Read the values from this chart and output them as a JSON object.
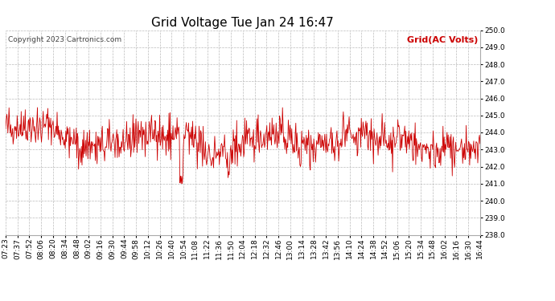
{
  "title": "Grid Voltage Tue Jan 24 16:47",
  "copyright": "Copyright 2023 Cartronics.com",
  "legend_label": "Grid(AC Volts)",
  "legend_color": "#cc0000",
  "background_color": "#ffffff",
  "plot_bg_color": "#ffffff",
  "grid_color": "#bbbbbb",
  "line_color": "#cc0000",
  "ylim": [
    238.0,
    250.0
  ],
  "yticks": [
    238.0,
    239.0,
    240.0,
    241.0,
    242.0,
    243.0,
    244.0,
    245.0,
    246.0,
    247.0,
    248.0,
    249.0,
    250.0
  ],
  "xtick_labels": [
    "07:23",
    "07:37",
    "07:52",
    "08:06",
    "08:20",
    "08:34",
    "08:48",
    "09:02",
    "09:16",
    "09:30",
    "09:44",
    "09:58",
    "10:12",
    "10:26",
    "10:40",
    "10:54",
    "11:08",
    "11:22",
    "11:36",
    "11:50",
    "12:04",
    "12:18",
    "12:32",
    "12:46",
    "13:00",
    "13:14",
    "13:28",
    "13:42",
    "13:56",
    "14:10",
    "14:24",
    "14:38",
    "14:52",
    "15:06",
    "15:20",
    "15:34",
    "15:48",
    "16:02",
    "16:16",
    "16:30",
    "16:44"
  ],
  "title_fontsize": 11,
  "tick_fontsize": 6.5,
  "copyright_fontsize": 6.5,
  "legend_fontsize": 8,
  "seed": 42,
  "n_points": 820,
  "base_voltage": 243.7
}
